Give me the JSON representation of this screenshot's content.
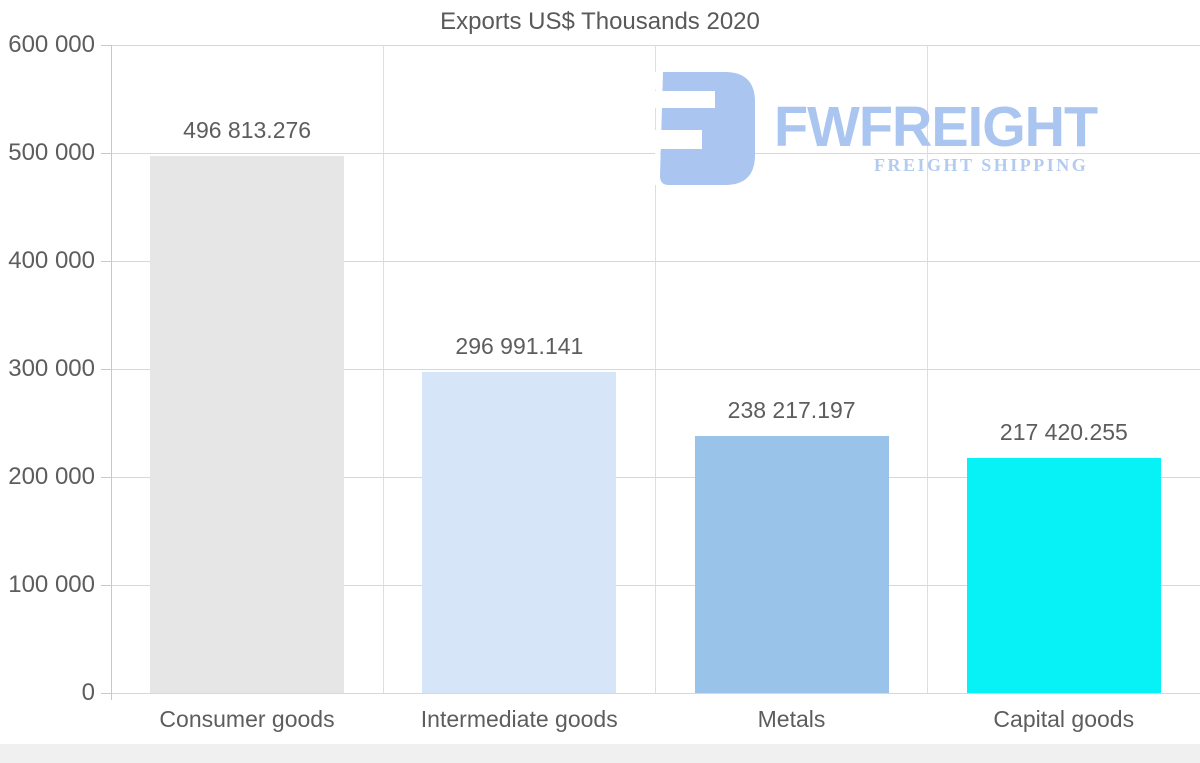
{
  "watermark": {
    "brand": "FWFREIGHT",
    "tagline": "FREIGHT SHIPPING",
    "color": "#a9c5f0"
  },
  "chart_data": {
    "type": "bar",
    "title": "Exports US$ Thousands 2020",
    "categories": [
      "Consumer goods",
      "Intermediate goods",
      "Metals",
      "Capital goods"
    ],
    "values": [
      496813.276,
      296991.141,
      238217.197,
      217420.255
    ],
    "value_labels": [
      "496 813.276",
      "296 991.141",
      "238 217.197",
      "217 420.255"
    ],
    "bar_colors": [
      "#e6e6e6",
      "#d6e6f8",
      "#99c3e8",
      "#06f2f6"
    ],
    "xlabel": "",
    "ylabel": "",
    "ylim": [
      0,
      600000
    ],
    "ytick_interval": 100000,
    "yticks": [
      {
        "v": 0,
        "label": "0"
      },
      {
        "v": 100000,
        "label": "100 000"
      },
      {
        "v": 200000,
        "label": "200 000"
      },
      {
        "v": 300000,
        "label": "300 000"
      },
      {
        "v": 400000,
        "label": "400 000"
      },
      {
        "v": 500000,
        "label": "500 000"
      },
      {
        "v": 600000,
        "label": "600 000"
      }
    ],
    "grid": "horizontal gridlines + vertical category separators",
    "legend": "none",
    "colors": {
      "text": "#5d5d5d",
      "gridline": "#d8d8d8",
      "axis": "#c9c9c9",
      "background": "#ffffff"
    }
  }
}
